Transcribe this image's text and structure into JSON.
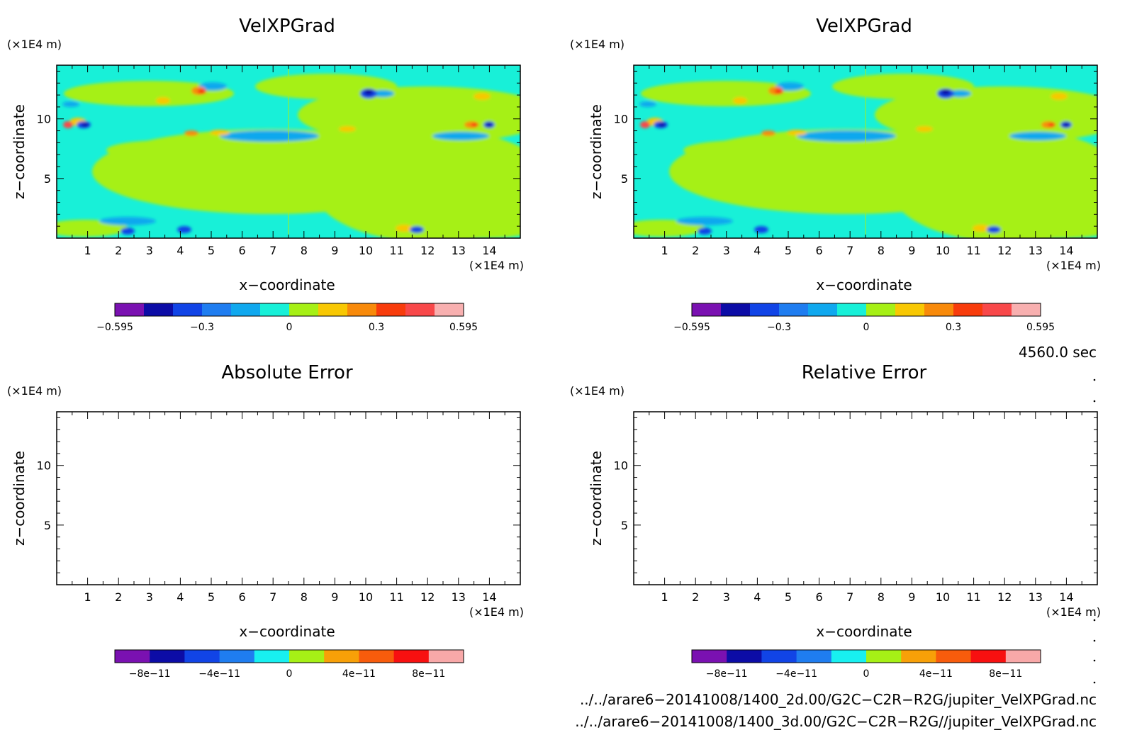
{
  "panels": [
    {
      "title": "VelXPGrad",
      "xlabel": "x−coordinate",
      "ylabel": "z−coordinate",
      "xunit": "(×1E4 m)",
      "yunit": "(×1E4 m)",
      "xticks": [
        "1",
        "2",
        "3",
        "4",
        "5",
        "6",
        "7",
        "8",
        "9",
        "10",
        "11",
        "12",
        "13",
        "14"
      ],
      "yticks": [
        "5",
        "10"
      ],
      "filled": true,
      "colorbar": {
        "colors": [
          "#7a11b1",
          "#0c0ca6",
          "#1144e6",
          "#1f7df0",
          "#10a8ee",
          "#18f0d8",
          "#a6f016",
          "#f8c803",
          "#f88a0a",
          "#f83c0c",
          "#f8484a",
          "#f8b0b0"
        ],
        "labels": [
          "−0.595",
          "−0.3",
          "0",
          "0.3",
          "0.595"
        ]
      }
    },
    {
      "title": "VelXPGrad",
      "xlabel": "x−coordinate",
      "ylabel": "z−coordinate",
      "xunit": "(×1E4 m)",
      "yunit": "(×1E4 m)",
      "xticks": [
        "1",
        "2",
        "3",
        "4",
        "5",
        "6",
        "7",
        "8",
        "9",
        "10",
        "11",
        "12",
        "13",
        "14"
      ],
      "yticks": [
        "5",
        "10"
      ],
      "filled": true,
      "colorbar": {
        "colors": [
          "#7a11b1",
          "#0c0ca6",
          "#1144e6",
          "#1f7df0",
          "#10a8ee",
          "#18f0d8",
          "#a6f016",
          "#f8c803",
          "#f88a0a",
          "#f83c0c",
          "#f8484a",
          "#f8b0b0"
        ],
        "labels": [
          "−0.595",
          "−0.3",
          "0",
          "0.3",
          "0.595"
        ]
      }
    },
    {
      "title": "Absolute Error",
      "xlabel": "x−coordinate",
      "ylabel": "z−coordinate",
      "xunit": "(×1E4 m)",
      "yunit": "(×1E4 m)",
      "xticks": [
        "1",
        "2",
        "3",
        "4",
        "5",
        "6",
        "7",
        "8",
        "9",
        "10",
        "11",
        "12",
        "13",
        "14"
      ],
      "yticks": [
        "5",
        "10"
      ],
      "filled": false,
      "colorbar": {
        "colors": [
          "#7a11b1",
          "#0c0ca6",
          "#1144e6",
          "#1f7df0",
          "#18f0f0",
          "#a6f016",
          "#f8a008",
          "#f85c0c",
          "#f81010",
          "#f8a8a8"
        ],
        "labels": [
          "−8e−11",
          "−4e−11",
          "0",
          "4e−11",
          "8e−11"
        ]
      }
    },
    {
      "title": "Relative Error",
      "xlabel": "x−coordinate",
      "ylabel": "z−coordinate",
      "xunit": "(×1E4 m)",
      "yunit": "(×1E4 m)",
      "xticks": [
        "1",
        "2",
        "3",
        "4",
        "5",
        "6",
        "7",
        "8",
        "9",
        "10",
        "11",
        "12",
        "13",
        "14"
      ],
      "yticks": [
        "5",
        "10"
      ],
      "filled": false,
      "colorbar": {
        "colors": [
          "#7a11b1",
          "#0c0ca6",
          "#1144e6",
          "#1f7df0",
          "#18f0f0",
          "#a6f016",
          "#f8a008",
          "#f85c0c",
          "#f81010",
          "#f8a8a8"
        ],
        "labels": [
          "−8e−11",
          "−4e−11",
          "0",
          "4e−11",
          "8e−11"
        ]
      }
    }
  ],
  "time_label": "4560.0 sec",
  "file1": "../../arare6−20141008/1400_2d.00/G2C−C2R−R2G/jupiter_VelXPGrad.nc",
  "file2": "../../arare6−20141008/1400_3d.00/G2C−C2R−R2G//jupiter_VelXPGrad.nc",
  "chart_data": [
    {
      "type": "heatmap",
      "title": "VelXPGrad",
      "xlabel": "x−coordinate",
      "ylabel": "z−coordinate",
      "xlim": [
        0,
        15
      ],
      "ylim": [
        0,
        14.5
      ],
      "colorbar_range": [
        -0.595,
        0.595
      ]
    },
    {
      "type": "heatmap",
      "title": "VelXPGrad",
      "xlabel": "x−coordinate",
      "ylabel": "z−coordinate",
      "xlim": [
        0,
        15
      ],
      "ylim": [
        0,
        14.5
      ],
      "colorbar_range": [
        -0.595,
        0.595
      ]
    },
    {
      "type": "heatmap",
      "title": "Absolute Error",
      "xlabel": "x−coordinate",
      "ylabel": "z−coordinate",
      "xlim": [
        0,
        15
      ],
      "ylim": [
        0,
        14.5
      ],
      "colorbar_range": [
        -1e-10,
        1e-10
      ]
    },
    {
      "type": "heatmap",
      "title": "Relative Error",
      "xlabel": "x−coordinate",
      "ylabel": "z−coordinate",
      "xlim": [
        0,
        15
      ],
      "ylim": [
        0,
        14.5
      ],
      "colorbar_range": [
        -1e-10,
        1e-10
      ]
    }
  ]
}
